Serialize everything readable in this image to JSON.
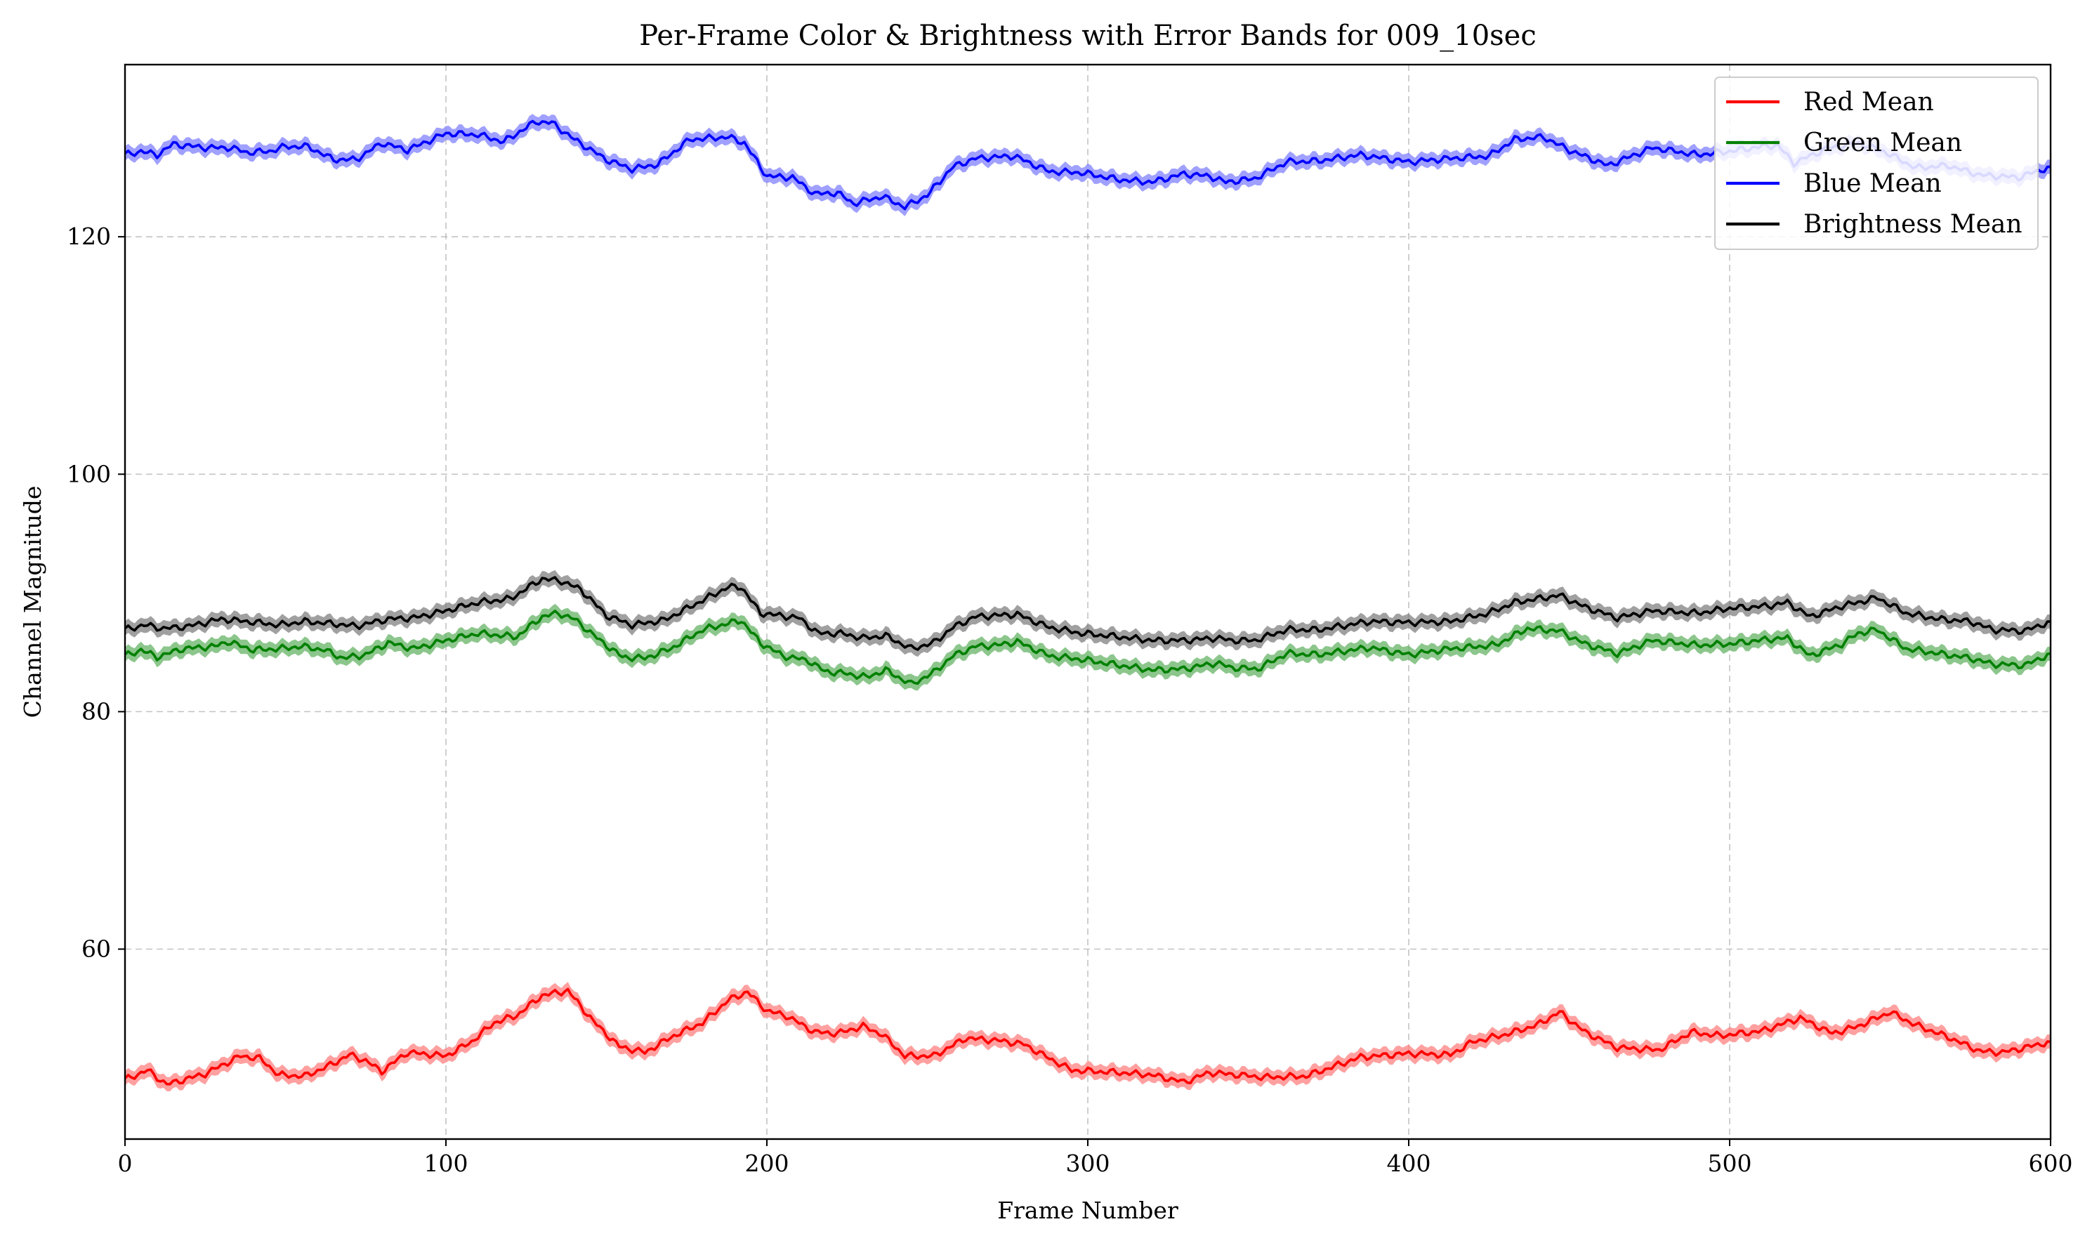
{
  "chart_data": {
    "type": "line",
    "title": "Per-Frame Color & Brightness with Error Bands for 009_10sec",
    "xlabel": "Frame Number",
    "ylabel": "Channel Magnitude",
    "xlim": [
      0,
      600
    ],
    "ylim": [
      44,
      134.5
    ],
    "xticks": [
      0,
      100,
      200,
      300,
      400,
      500,
      600
    ],
    "yticks": [
      60,
      80,
      100,
      120
    ],
    "grid": true,
    "legend_position": "top-right",
    "error_band_halfwidth": 0.6,
    "series": [
      {
        "name": "Red Mean",
        "color": "#ff0000",
        "band_color": "#ff8080",
        "points": [
          [
            0,
            49.0
          ],
          [
            7,
            49.8
          ],
          [
            13,
            48.6
          ],
          [
            25,
            49.5
          ],
          [
            36,
            51.0
          ],
          [
            42,
            50.8
          ],
          [
            48,
            49.4
          ],
          [
            56,
            49.3
          ],
          [
            63,
            50.1
          ],
          [
            70,
            51.1
          ],
          [
            75,
            50.6
          ],
          [
            80,
            49.7
          ],
          [
            88,
            51.3
          ],
          [
            100,
            51.0
          ],
          [
            108,
            52.2
          ],
          [
            115,
            53.8
          ],
          [
            122,
            54.4
          ],
          [
            130,
            56.1
          ],
          [
            138,
            56.5
          ],
          [
            146,
            53.9
          ],
          [
            154,
            51.8
          ],
          [
            162,
            51.3
          ],
          [
            171,
            52.7
          ],
          [
            180,
            53.8
          ],
          [
            188,
            55.7
          ],
          [
            194,
            56.4
          ],
          [
            200,
            54.8
          ],
          [
            206,
            54.4
          ],
          [
            215,
            53.0
          ],
          [
            222,
            52.9
          ],
          [
            230,
            53.5
          ],
          [
            236,
            52.8
          ],
          [
            243,
            51.0
          ],
          [
            252,
            51.0
          ],
          [
            262,
            52.5
          ],
          [
            272,
            52.3
          ],
          [
            280,
            52.0
          ],
          [
            288,
            50.8
          ],
          [
            295,
            49.8
          ],
          [
            310,
            49.6
          ],
          [
            320,
            49.4
          ],
          [
            330,
            48.8
          ],
          [
            338,
            49.6
          ],
          [
            347,
            49.4
          ],
          [
            355,
            49.2
          ],
          [
            368,
            49.3
          ],
          [
            385,
            50.9
          ],
          [
            400,
            51.2
          ],
          [
            413,
            51.1
          ],
          [
            420,
            52.2
          ],
          [
            430,
            52.8
          ],
          [
            440,
            53.6
          ],
          [
            447,
            54.7
          ],
          [
            455,
            53.0
          ],
          [
            465,
            51.7
          ],
          [
            478,
            51.5
          ],
          [
            488,
            53.0
          ],
          [
            497,
            52.7
          ],
          [
            510,
            53.1
          ],
          [
            522,
            54.2
          ],
          [
            532,
            52.9
          ],
          [
            540,
            53.5
          ],
          [
            550,
            54.7
          ],
          [
            558,
            53.6
          ],
          [
            568,
            52.6
          ],
          [
            578,
            51.4
          ],
          [
            585,
            51.3
          ],
          [
            592,
            51.7
          ],
          [
            600,
            52.2
          ]
        ]
      },
      {
        "name": "Green Mean",
        "color": "#008000",
        "band_color": "#66b366",
        "points": [
          [
            0,
            84.7
          ],
          [
            5,
            85.2
          ],
          [
            10,
            84.6
          ],
          [
            18,
            85.3
          ],
          [
            28,
            85.5
          ],
          [
            32,
            85.9
          ],
          [
            40,
            85.2
          ],
          [
            48,
            85.3
          ],
          [
            55,
            85.5
          ],
          [
            62,
            85.2
          ],
          [
            68,
            84.5
          ],
          [
            75,
            84.8
          ],
          [
            82,
            85.8
          ],
          [
            90,
            85.3
          ],
          [
            100,
            86.0
          ],
          [
            110,
            86.6
          ],
          [
            122,
            86.3
          ],
          [
            130,
            88.0
          ],
          [
            135,
            88.3
          ],
          [
            140,
            87.8
          ],
          [
            148,
            86.0
          ],
          [
            155,
            84.6
          ],
          [
            162,
            84.5
          ],
          [
            170,
            85.3
          ],
          [
            180,
            86.9
          ],
          [
            192,
            87.7
          ],
          [
            198,
            85.8
          ],
          [
            205,
            84.7
          ],
          [
            213,
            84.3
          ],
          [
            218,
            83.4
          ],
          [
            225,
            83.2
          ],
          [
            231,
            82.9
          ],
          [
            237,
            83.5
          ],
          [
            245,
            82.3
          ],
          [
            252,
            83.3
          ],
          [
            258,
            84.7
          ],
          [
            265,
            85.5
          ],
          [
            272,
            85.6
          ],
          [
            278,
            85.9
          ],
          [
            288,
            84.7
          ],
          [
            298,
            84.4
          ],
          [
            310,
            83.9
          ],
          [
            320,
            83.5
          ],
          [
            330,
            83.6
          ],
          [
            340,
            84.1
          ],
          [
            345,
            83.7
          ],
          [
            353,
            83.6
          ],
          [
            362,
            84.9
          ],
          [
            372,
            84.8
          ],
          [
            388,
            85.4
          ],
          [
            400,
            84.8
          ],
          [
            413,
            85.3
          ],
          [
            427,
            85.6
          ],
          [
            437,
            87.0
          ],
          [
            447,
            86.8
          ],
          [
            455,
            85.7
          ],
          [
            465,
            84.9
          ],
          [
            476,
            86.0
          ],
          [
            490,
            85.6
          ],
          [
            500,
            85.7
          ],
          [
            512,
            86.1
          ],
          [
            518,
            86.2
          ],
          [
            525,
            84.7
          ],
          [
            535,
            85.7
          ],
          [
            540,
            86.6
          ],
          [
            546,
            86.9
          ],
          [
            555,
            85.3
          ],
          [
            565,
            84.9
          ],
          [
            575,
            84.5
          ],
          [
            582,
            84.0
          ],
          [
            592,
            83.9
          ],
          [
            600,
            84.9
          ]
        ]
      },
      {
        "name": "Blue Mean",
        "color": "#0000ff",
        "band_color": "#8080ff",
        "points": [
          [
            0,
            126.9
          ],
          [
            5,
            127.2
          ],
          [
            10,
            126.9
          ],
          [
            15,
            127.8
          ],
          [
            25,
            127.5
          ],
          [
            33,
            127.5
          ],
          [
            38,
            127.1
          ],
          [
            45,
            127.2
          ],
          [
            50,
            127.6
          ],
          [
            57,
            127.6
          ],
          [
            65,
            126.5
          ],
          [
            72,
            126.5
          ],
          [
            80,
            127.9
          ],
          [
            88,
            127.3
          ],
          [
            100,
            128.7
          ],
          [
            110,
            128.6
          ],
          [
            118,
            128.0
          ],
          [
            128,
            129.7
          ],
          [
            133,
            129.6
          ],
          [
            140,
            128.2
          ],
          [
            150,
            126.5
          ],
          [
            158,
            125.7
          ],
          [
            166,
            126.1
          ],
          [
            176,
            128.2
          ],
          [
            188,
            128.4
          ],
          [
            193,
            127.9
          ],
          [
            200,
            125.1
          ],
          [
            208,
            125.0
          ],
          [
            215,
            123.6
          ],
          [
            222,
            123.7
          ],
          [
            227,
            122.8
          ],
          [
            236,
            123.4
          ],
          [
            243,
            122.5
          ],
          [
            250,
            123.5
          ],
          [
            258,
            125.9
          ],
          [
            265,
            126.6
          ],
          [
            277,
            126.8
          ],
          [
            288,
            125.5
          ],
          [
            298,
            125.4
          ],
          [
            310,
            124.8
          ],
          [
            320,
            124.6
          ],
          [
            330,
            125.3
          ],
          [
            338,
            125.1
          ],
          [
            343,
            124.6
          ],
          [
            352,
            124.9
          ],
          [
            362,
            126.3
          ],
          [
            372,
            126.4
          ],
          [
            385,
            126.9
          ],
          [
            400,
            126.3
          ],
          [
            413,
            126.6
          ],
          [
            425,
            126.8
          ],
          [
            433,
            128.2
          ],
          [
            442,
            128.4
          ],
          [
            450,
            127.3
          ],
          [
            462,
            126.0
          ],
          [
            476,
            127.5
          ],
          [
            490,
            126.9
          ],
          [
            500,
            127.2
          ],
          [
            510,
            127.6
          ],
          [
            515,
            127.7
          ],
          [
            520,
            126.2
          ],
          [
            530,
            127.4
          ],
          [
            540,
            127.9
          ],
          [
            548,
            127.2
          ],
          [
            558,
            125.8
          ],
          [
            568,
            126.0
          ],
          [
            578,
            125.2
          ],
          [
            590,
            125.0
          ],
          [
            600,
            125.9
          ]
        ]
      },
      {
        "name": "Brightness Mean",
        "color": "#000000",
        "band_color": "#808080",
        "points": [
          [
            0,
            86.9
          ],
          [
            6,
            87.3
          ],
          [
            12,
            87.0
          ],
          [
            20,
            87.2
          ],
          [
            30,
            87.8
          ],
          [
            38,
            87.6
          ],
          [
            48,
            87.3
          ],
          [
            56,
            87.6
          ],
          [
            65,
            87.4
          ],
          [
            72,
            87.2
          ],
          [
            82,
            87.8
          ],
          [
            90,
            87.9
          ],
          [
            100,
            88.5
          ],
          [
            110,
            89.2
          ],
          [
            120,
            89.5
          ],
          [
            130,
            91.2
          ],
          [
            136,
            91.0
          ],
          [
            142,
            90.3
          ],
          [
            150,
            88.1
          ],
          [
            158,
            87.3
          ],
          [
            168,
            87.7
          ],
          [
            178,
            89.1
          ],
          [
            188,
            90.5
          ],
          [
            192,
            90.5
          ],
          [
            198,
            88.3
          ],
          [
            210,
            87.9
          ],
          [
            216,
            86.6
          ],
          [
            223,
            86.6
          ],
          [
            230,
            86.2
          ],
          [
            237,
            86.4
          ],
          [
            245,
            85.3
          ],
          [
            252,
            85.8
          ],
          [
            258,
            87.1
          ],
          [
            265,
            88.0
          ],
          [
            278,
            88.2
          ],
          [
            288,
            87.1
          ],
          [
            298,
            86.6
          ],
          [
            310,
            86.3
          ],
          [
            320,
            86.0
          ],
          [
            330,
            86.0
          ],
          [
            340,
            86.2
          ],
          [
            345,
            86.0
          ],
          [
            352,
            86.0
          ],
          [
            362,
            86.9
          ],
          [
            372,
            86.9
          ],
          [
            388,
            87.6
          ],
          [
            400,
            87.5
          ],
          [
            413,
            87.6
          ],
          [
            425,
            88.3
          ],
          [
            433,
            89.2
          ],
          [
            447,
            89.8
          ],
          [
            455,
            88.8
          ],
          [
            465,
            87.9
          ],
          [
            476,
            88.5
          ],
          [
            490,
            88.3
          ],
          [
            500,
            88.7
          ],
          [
            512,
            88.9
          ],
          [
            518,
            89.2
          ],
          [
            525,
            88.0
          ],
          [
            535,
            88.9
          ],
          [
            540,
            89.2
          ],
          [
            546,
            89.6
          ],
          [
            555,
            88.3
          ],
          [
            565,
            87.8
          ],
          [
            575,
            87.6
          ],
          [
            582,
            86.9
          ],
          [
            592,
            86.8
          ],
          [
            600,
            87.6
          ]
        ]
      }
    ]
  }
}
